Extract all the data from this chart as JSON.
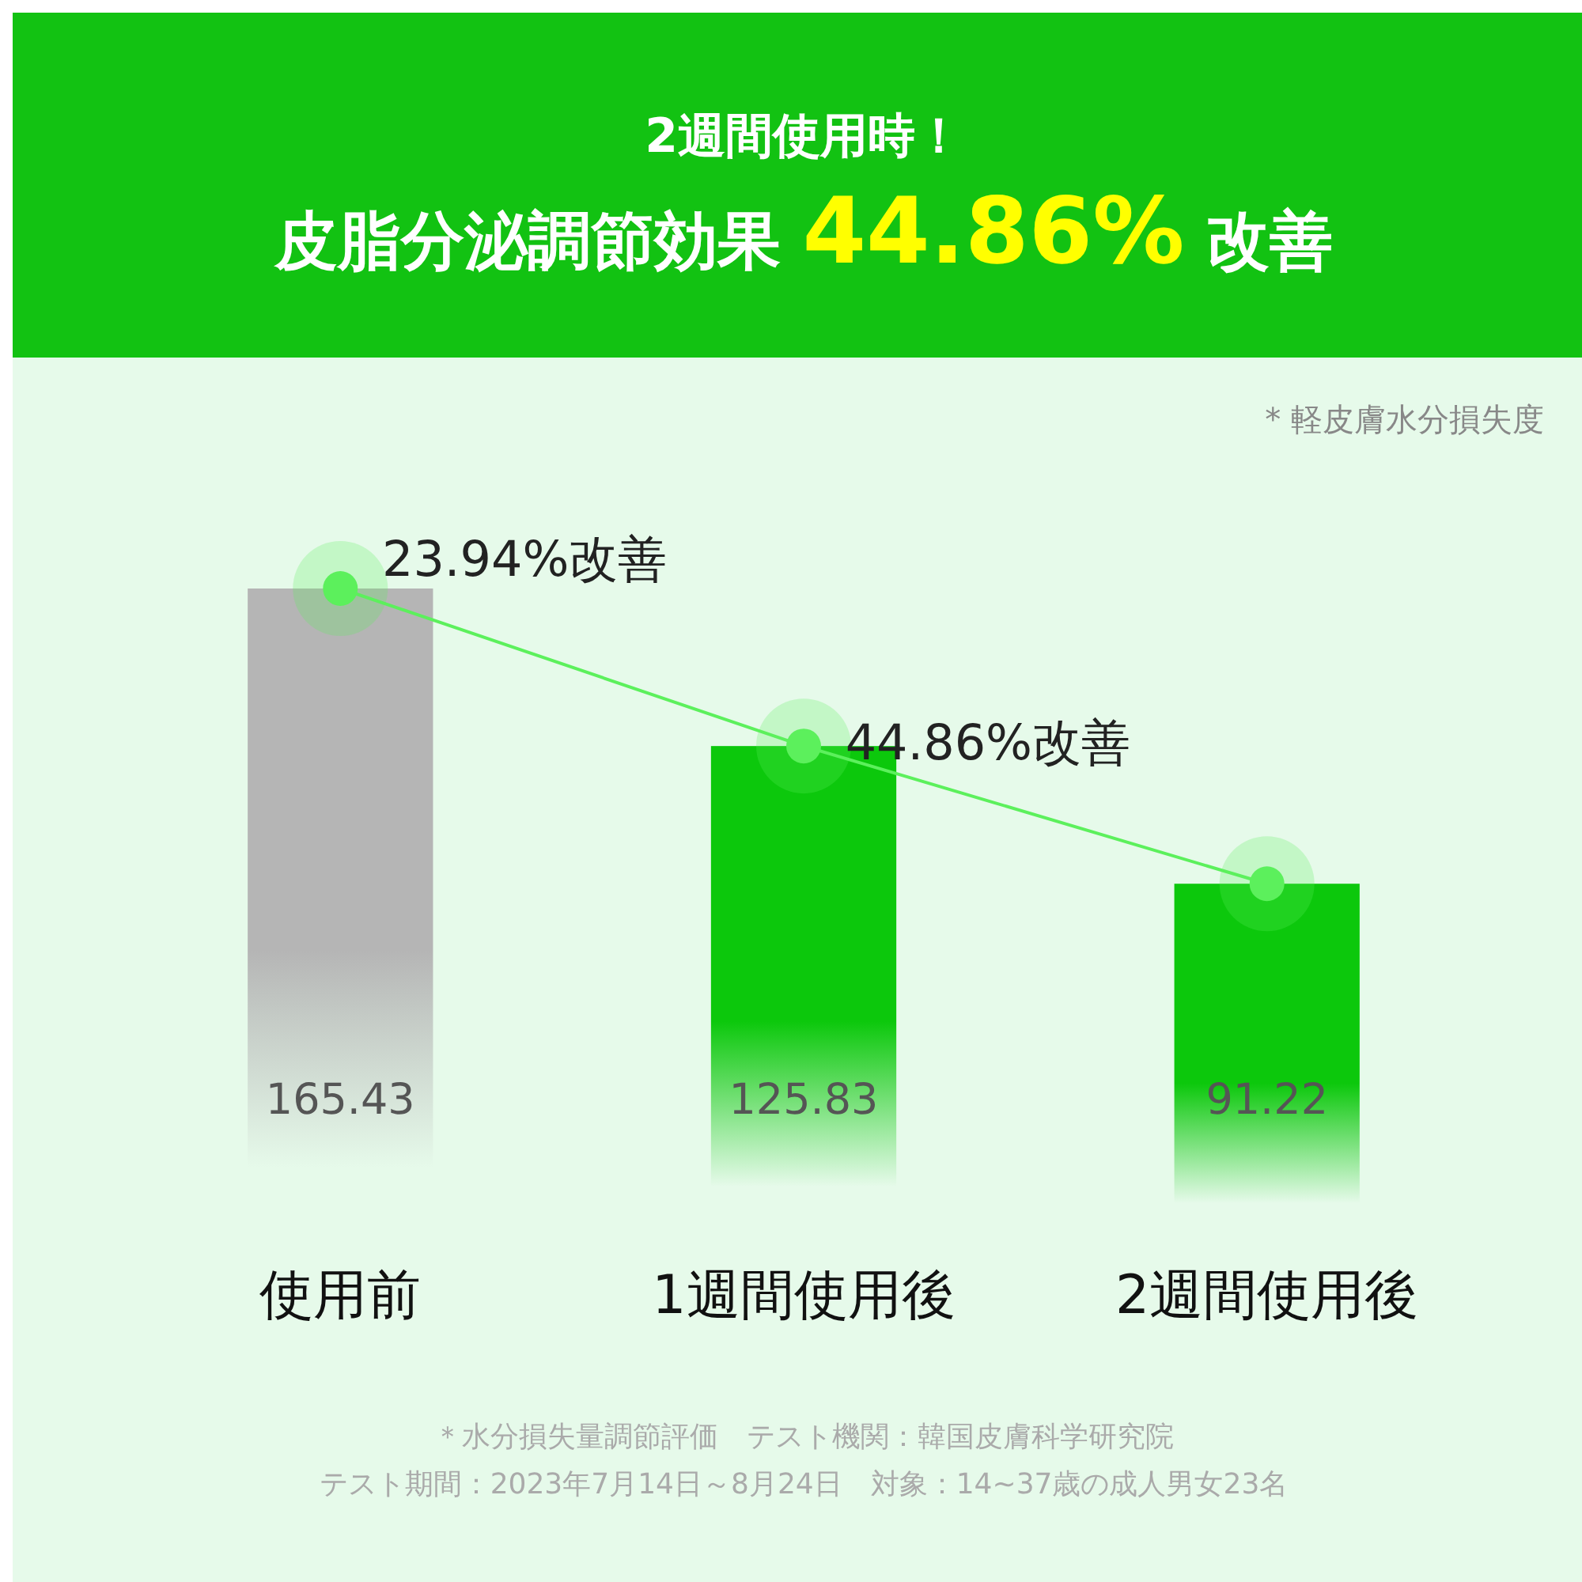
{
  "chart_data": {
    "type": "bar",
    "title": "2週間使用時！",
    "subtitle": "皮脂分泌調節効果 44.86% 改善",
    "categories": [
      "使用前",
      "1週間使用後",
      "2週間使用後"
    ],
    "series": [
      {
        "values": [
          165.43,
          125.83,
          91.22
        ],
        "colors": [
          "#b5b5b5",
          "#0cc80c",
          "#0cc80c"
        ],
        "value_labels": [
          "165.43",
          "125.83",
          "91.22"
        ]
      },
      {
        "type": "line",
        "values": [
          165.43,
          125.83,
          91.22
        ],
        "color": "#5cf05c"
      }
    ],
    "marker": "circle",
    "annotations": [
      "23.94%改善",
      "44.86%改善",
      "* 軽皮膚水分損失度",
      "＊水分損失量調節評価　テスト機関：韓国皮膚科学研究院",
      "テスト期間：2023年7月14日～8月24日　対象：14~37歳の成人男女23名"
    ]
  }
}
